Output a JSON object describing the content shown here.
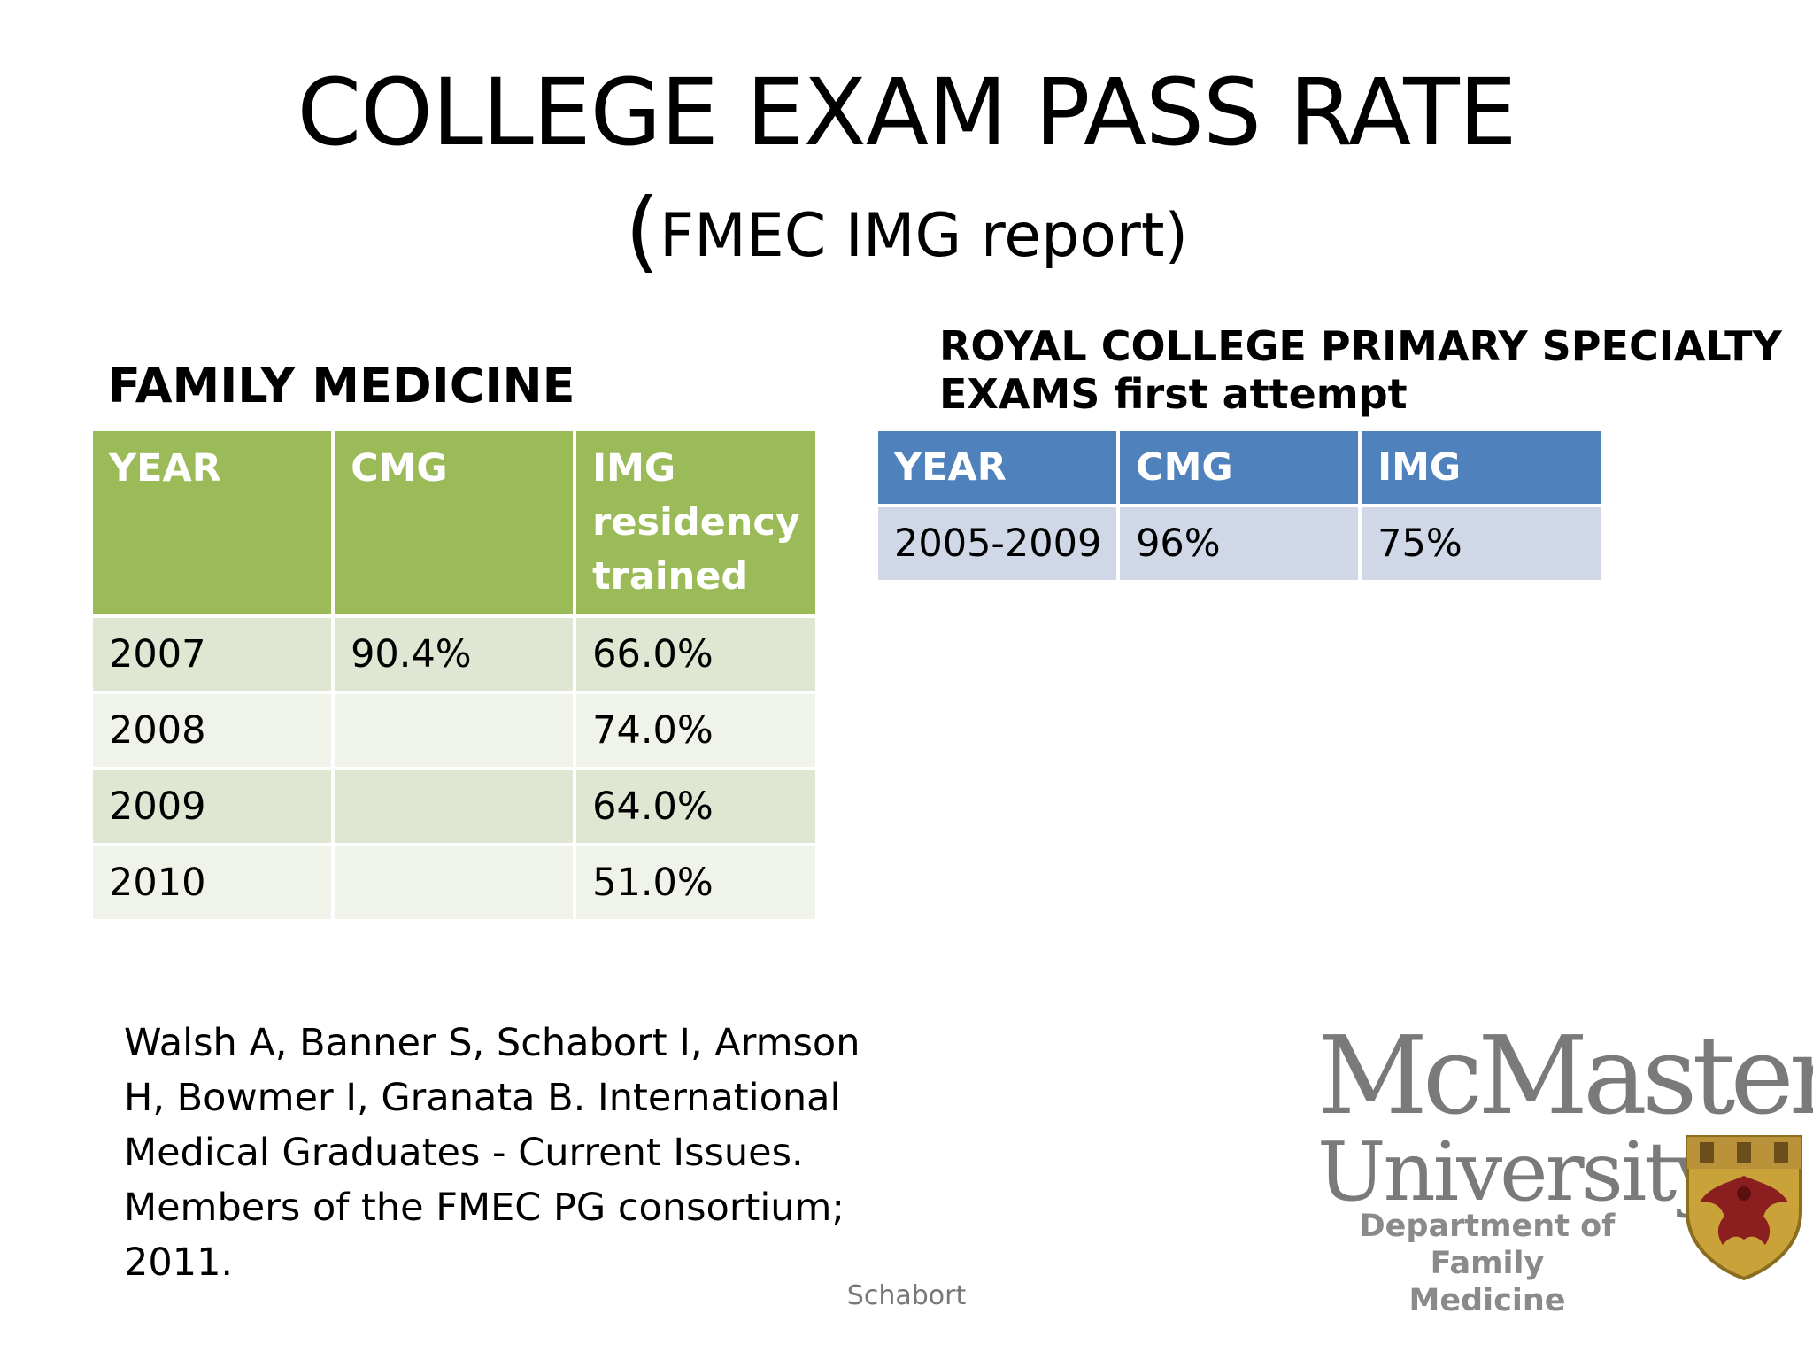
{
  "title": "COLLEGE EXAM PASS RATE",
  "subtitle": {
    "open_paren": "(",
    "text": "FMEC IMG report)"
  },
  "family_medicine": {
    "heading": "FAMILY MEDICINE",
    "headers": [
      "YEAR",
      "CMG",
      "IMG residency trained"
    ],
    "rows": [
      [
        "2007",
        "90.4%",
        "66.0%"
      ],
      [
        "2008",
        "",
        "74.0%"
      ],
      [
        "2009",
        "",
        "64.0%"
      ],
      [
        "2010",
        "",
        "51.0%"
      ]
    ],
    "header_color": "#9bbb59"
  },
  "royal_college": {
    "heading_line1": "ROYAL COLLEGE PRIMARY SPECIALTY",
    "heading_line2": "EXAMS first attempt",
    "headers": [
      "YEAR",
      "CMG",
      "IMG"
    ],
    "rows": [
      [
        "2005-2009",
        "96%",
        "75%"
      ]
    ],
    "header_color": "#4f81bd"
  },
  "citation": "Walsh A, Banner S, Schabort I, Armson H, Bowmer I, Granata B. International Medical Graduates - Current Issues. Members of the FMEC PG consortium; 2011.",
  "footer": "Schabort",
  "logo": {
    "line1": "McMaster",
    "line2": "University",
    "dept_line1": "Department of",
    "dept_line2": "Family Medicine",
    "icon": "crest-icon"
  }
}
